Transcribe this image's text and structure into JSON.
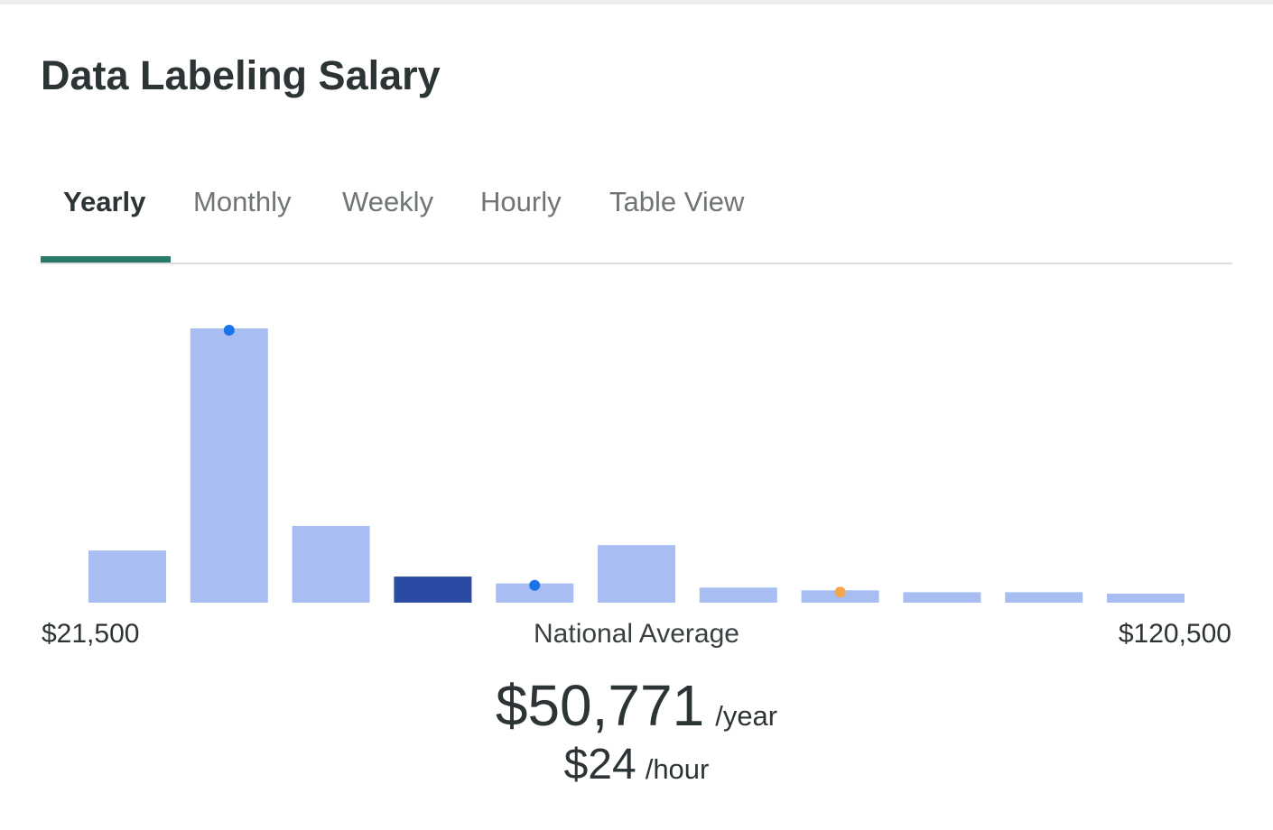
{
  "page": {
    "title": "Data Labeling Salary"
  },
  "tabs": [
    {
      "label": "Yearly",
      "active": true
    },
    {
      "label": "Monthly",
      "active": false
    },
    {
      "label": "Weekly",
      "active": false
    },
    {
      "label": "Hourly",
      "active": false
    },
    {
      "label": "Table View",
      "active": false
    }
  ],
  "colors": {
    "accent": "#277a6a",
    "bar": "#a8bdf2",
    "bar_highlight": "#2a4aa3",
    "marker_blue": "#1a73e8",
    "marker_orange": "#f5a54a"
  },
  "chart_data": {
    "type": "bar",
    "x_range": [
      "$21,500",
      "$120,500"
    ],
    "values": [
      19,
      100,
      28,
      9.5,
      7,
      21,
      5.5,
      4.5,
      3.8,
      3.8,
      3.3
    ],
    "highlight_index": 3,
    "markers": [
      {
        "bar_index": 1,
        "color": "blue"
      },
      {
        "bar_index": 4,
        "color": "blue"
      },
      {
        "bar_index": 7,
        "color": "orange"
      }
    ],
    "ylim": [
      0,
      100
    ],
    "grid": false
  },
  "axis": {
    "min_label": "$21,500",
    "mid_label": "National Average",
    "max_label": "$120,500"
  },
  "summary": {
    "yearly_amount": "$50,771",
    "yearly_unit": "/year",
    "hourly_amount": "$24",
    "hourly_unit": "/hour"
  }
}
